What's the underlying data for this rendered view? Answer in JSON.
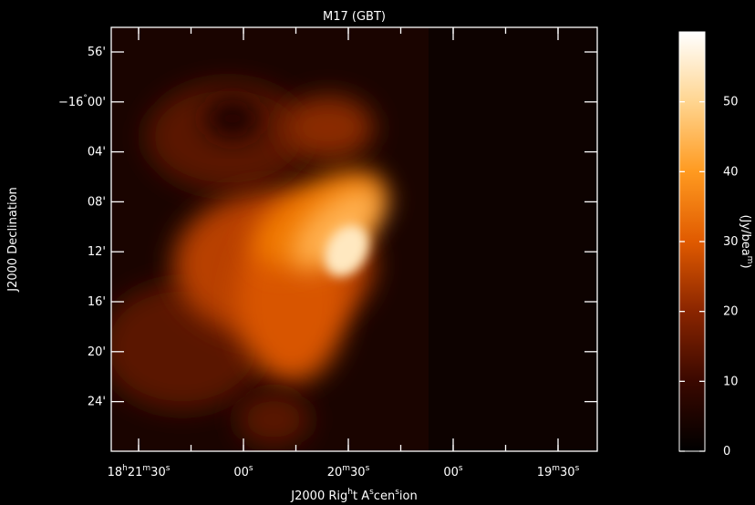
{
  "chart_data": {
    "type": "image",
    "title": "M17 (GBT)",
    "x_label": "J2000 Right Ascension",
    "y_label": "J2000 Declination",
    "x_tick_labels": [
      "18h21m30s",
      "00s",
      "20m30s",
      "00s",
      "19m30s"
    ],
    "y_tick_labels": [
      "56'",
      "−16°00'",
      "04'",
      "08'",
      "12'",
      "16'",
      "20'",
      "24'"
    ],
    "colorbar": {
      "label": "(Jy/beam)",
      "lim": [
        0,
        60
      ],
      "ticks": [
        0,
        10,
        20,
        30,
        40,
        50
      ],
      "colors": [
        "#000000",
        "#3a0800",
        "#8a2500",
        "#e05a00",
        "#ff9a20",
        "#ffd590",
        "#ffffff"
      ]
    }
  }
}
